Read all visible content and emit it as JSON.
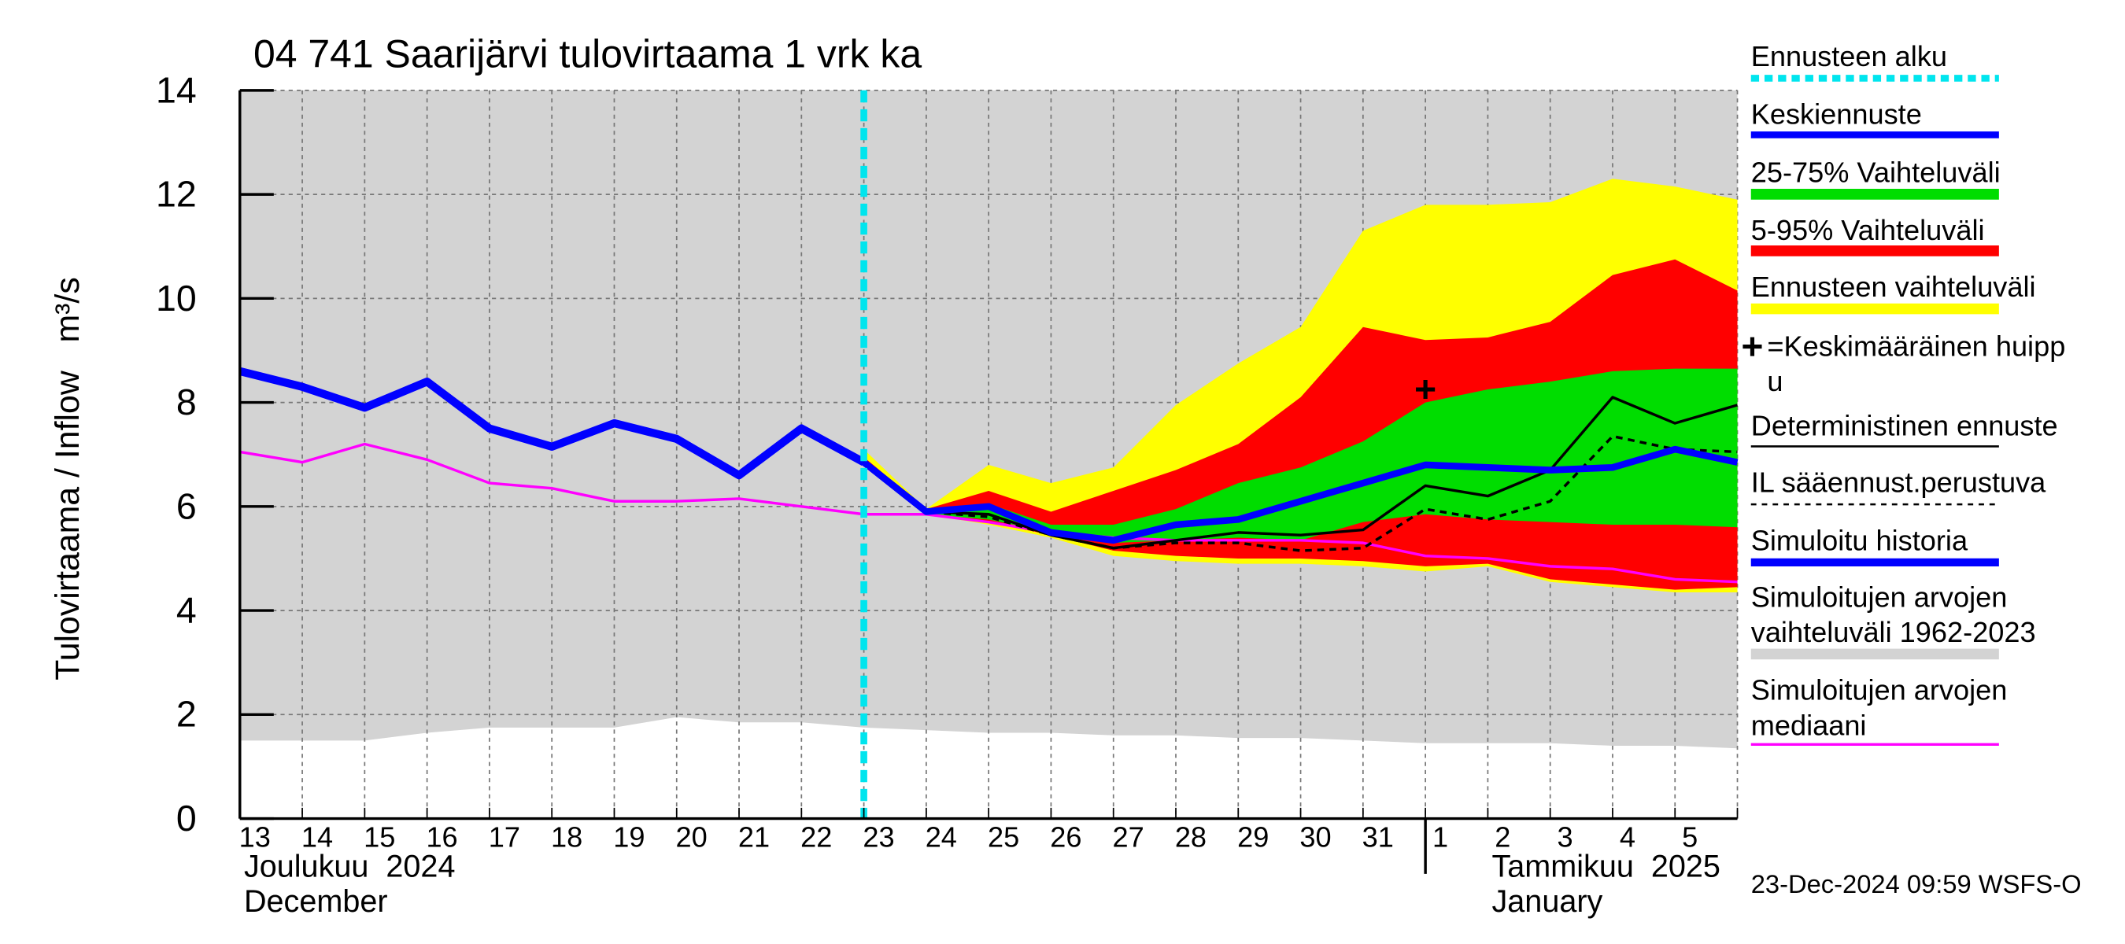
{
  "chart_data": {
    "type": "band-forecast",
    "title": "04 741 Saarijärvi tulovirtaama 1 vrk ka",
    "ylabel": "Tulovirtaama / Inflow   m³/s",
    "timestamp": "23-Dec-2024 09:59 WSFS-O",
    "categories": [
      "13",
      "14",
      "15",
      "16",
      "17",
      "18",
      "19",
      "20",
      "21",
      "22",
      "23",
      "24",
      "25",
      "26",
      "27",
      "28",
      "29",
      "30",
      "31",
      "1",
      "2",
      "3",
      "4",
      "5",
      null
    ],
    "month_labels": [
      [
        "Joulukuu  2024",
        "December"
      ],
      [
        "Tammikuu  2025",
        "January"
      ]
    ],
    "ylim": [
      0,
      14
    ],
    "yticks": [
      0,
      2,
      4,
      6,
      8,
      10,
      12,
      14
    ],
    "grid": true,
    "forecast_start": {
      "name": [
        "Ennusteen alku"
      ],
      "color": "#00e5ee",
      "x": 10
    },
    "series": [
      {
        "name": [
          "Keskiennuste"
        ],
        "color": "#0000ff",
        "kind": "line",
        "width": 5,
        "values": [
          null,
          null,
          null,
          null,
          null,
          null,
          null,
          null,
          null,
          null,
          6.85,
          5.9,
          6.0,
          5.5,
          5.35,
          5.65,
          5.75,
          6.1,
          6.45,
          6.8,
          6.75,
          6.7,
          6.75,
          7.1,
          6.85
        ]
      },
      {
        "name": [
          "25-75% Vaihteluväli"
        ],
        "color": "#00dd00",
        "kind": "band",
        "upper": [
          null,
          null,
          null,
          null,
          null,
          null,
          null,
          null,
          null,
          null,
          6.9,
          5.9,
          6.05,
          5.65,
          5.65,
          5.95,
          6.45,
          6.75,
          7.25,
          8.0,
          8.25,
          8.4,
          8.6,
          8.65,
          8.65
        ],
        "lower": [
          null,
          null,
          null,
          null,
          null,
          null,
          null,
          null,
          null,
          null,
          6.85,
          5.85,
          5.75,
          5.5,
          5.3,
          5.35,
          5.4,
          5.35,
          5.7,
          5.85,
          5.75,
          5.7,
          5.65,
          5.65,
          5.6
        ]
      },
      {
        "name": [
          "5-95% Vaihteluväli"
        ],
        "color": "#ff0000",
        "kind": "band",
        "upper": [
          null,
          null,
          null,
          null,
          null,
          null,
          null,
          null,
          null,
          null,
          6.95,
          5.95,
          6.3,
          5.9,
          6.3,
          6.7,
          7.2,
          8.1,
          9.45,
          9.2,
          9.25,
          9.55,
          10.45,
          10.75,
          10.15
        ],
        "lower": [
          null,
          null,
          null,
          null,
          null,
          null,
          null,
          null,
          null,
          null,
          6.85,
          5.85,
          5.7,
          5.45,
          5.15,
          5.05,
          5.0,
          5.0,
          4.95,
          4.85,
          4.9,
          4.6,
          4.5,
          4.4,
          4.45
        ]
      },
      {
        "name": [
          "Ennusteen vaihteluväli"
        ],
        "color": "#ffff00",
        "kind": "band",
        "upper": [
          null,
          null,
          null,
          null,
          null,
          null,
          null,
          null,
          null,
          null,
          7.1,
          5.95,
          6.8,
          6.45,
          6.75,
          7.95,
          8.75,
          9.45,
          11.3,
          11.8,
          11.8,
          11.85,
          12.3,
          12.15,
          11.9
        ],
        "lower": [
          null,
          null,
          null,
          null,
          null,
          null,
          null,
          null,
          null,
          null,
          6.85,
          5.85,
          5.65,
          5.4,
          5.05,
          4.95,
          4.9,
          4.9,
          4.85,
          4.75,
          4.85,
          4.55,
          4.45,
          4.35,
          4.35
        ]
      },
      {
        "name": [
          "=Keskimääräinen huipp",
          "u"
        ],
        "color": "#000000",
        "kind": "marker",
        "values": [
          null,
          null,
          null,
          null,
          null,
          null,
          null,
          null,
          null,
          null,
          null,
          null,
          null,
          null,
          null,
          null,
          null,
          null,
          null,
          8.25,
          null,
          null,
          null,
          null,
          null
        ]
      },
      {
        "name": [
          "Deterministinen ennuste"
        ],
        "color": "#000000",
        "kind": "line",
        "width": 2,
        "values": [
          null,
          null,
          null,
          null,
          null,
          null,
          null,
          null,
          null,
          null,
          6.85,
          5.9,
          5.85,
          5.45,
          5.2,
          5.35,
          5.5,
          5.45,
          5.55,
          6.4,
          6.2,
          6.7,
          8.1,
          7.6,
          7.95
        ]
      },
      {
        "name": [
          "IL sääennust.perustuva"
        ],
        "color": "#000000",
        "kind": "line",
        "width": 2,
        "dashed": true,
        "values": [
          null,
          null,
          null,
          null,
          null,
          null,
          null,
          null,
          null,
          null,
          6.85,
          5.9,
          5.8,
          5.45,
          5.2,
          5.3,
          5.3,
          5.15,
          5.2,
          5.95,
          5.75,
          6.1,
          7.35,
          7.1,
          7.05
        ]
      },
      {
        "name": [
          "Simuloitu historia"
        ],
        "color": "#0000ff",
        "kind": "line",
        "width": 6,
        "values": [
          8.6,
          8.3,
          7.9,
          8.4,
          7.5,
          7.15,
          7.6,
          7.3,
          6.6,
          7.5,
          6.85,
          null,
          null,
          null,
          null,
          null,
          null,
          null,
          null,
          null,
          null,
          null,
          null,
          null,
          null
        ]
      },
      {
        "name": [
          "Simuloitujen arvojen",
          "vaihteluväli 1962-2023"
        ],
        "color": "#d3d3d3",
        "kind": "band",
        "upper": [
          14,
          14,
          14,
          14,
          14,
          14,
          14,
          14,
          14,
          14,
          14,
          14,
          14,
          14,
          14,
          14,
          14,
          14,
          14,
          14,
          14,
          14,
          14,
          14,
          14
        ],
        "lower": [
          1.5,
          1.5,
          1.5,
          1.65,
          1.75,
          1.75,
          1.75,
          1.95,
          1.85,
          1.85,
          1.75,
          1.7,
          1.65,
          1.65,
          1.6,
          1.6,
          1.55,
          1.55,
          1.5,
          1.45,
          1.45,
          1.45,
          1.4,
          1.4,
          1.35
        ]
      },
      {
        "name": [
          "Simuloitujen arvojen",
          "mediaani"
        ],
        "color": "#ff00ff",
        "kind": "line",
        "width": 2,
        "values": [
          7.05,
          6.85,
          7.2,
          6.9,
          6.45,
          6.35,
          6.1,
          6.1,
          6.15,
          6.0,
          5.85,
          5.85,
          5.7,
          5.5,
          5.4,
          5.35,
          5.35,
          5.35,
          5.3,
          5.05,
          5.0,
          4.85,
          4.8,
          4.6,
          4.55
        ]
      }
    ]
  }
}
